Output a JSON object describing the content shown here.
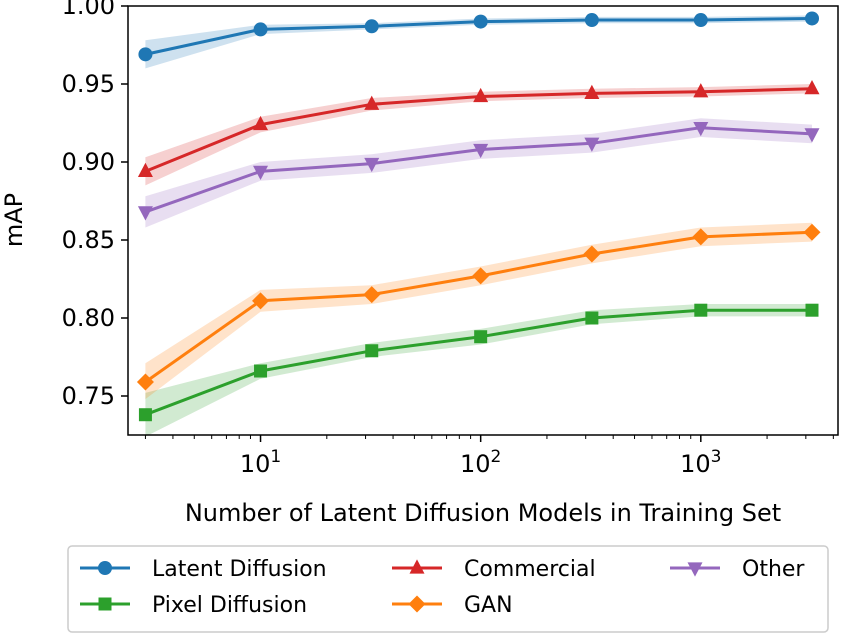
{
  "chart_data": {
    "type": "line",
    "title": "",
    "xlabel": "Number of Latent Diffusion Models in Training Set",
    "ylabel": "mAP",
    "xscale": "log",
    "xlim": [
      2.5,
      4200
    ],
    "ylim": [
      0.725,
      1.0
    ],
    "x": [
      3,
      10,
      32,
      100,
      320,
      1000,
      3200
    ],
    "y_ticks": [
      "0.75",
      "0.80",
      "0.85",
      "0.90",
      "0.95",
      "1.00"
    ],
    "x_ticks": [
      {
        "base": "10",
        "exp": "1"
      },
      {
        "base": "10",
        "exp": "2"
      },
      {
        "base": "10",
        "exp": "3"
      }
    ],
    "legend_position": "below",
    "series": [
      {
        "name": "Latent Diffusion",
        "color": "#1f77b4",
        "marker": "circle",
        "values": [
          0.969,
          0.985,
          0.987,
          0.99,
          0.991,
          0.991,
          0.992
        ],
        "lower": [
          0.96,
          0.982,
          0.985,
          0.988,
          0.989,
          0.989,
          0.99
        ],
        "upper": [
          0.978,
          0.988,
          0.989,
          0.992,
          0.993,
          0.993,
          0.994
        ]
      },
      {
        "name": "Pixel Diffusion",
        "color": "#2ca02c",
        "marker": "square",
        "values": [
          0.738,
          0.766,
          0.779,
          0.788,
          0.8,
          0.805,
          0.805
        ],
        "lower": [
          0.724,
          0.761,
          0.775,
          0.783,
          0.796,
          0.801,
          0.801
        ],
        "upper": [
          0.752,
          0.771,
          0.784,
          0.793,
          0.805,
          0.809,
          0.809
        ]
      },
      {
        "name": "Commercial",
        "color": "#d62728",
        "marker": "triangle-up",
        "values": [
          0.894,
          0.924,
          0.937,
          0.942,
          0.944,
          0.945,
          0.947
        ],
        "lower": [
          0.885,
          0.919,
          0.933,
          0.939,
          0.941,
          0.942,
          0.944
        ],
        "upper": [
          0.903,
          0.929,
          0.941,
          0.945,
          0.947,
          0.948,
          0.95
        ]
      },
      {
        "name": "GAN",
        "color": "#ff7f0e",
        "marker": "diamond",
        "values": [
          0.759,
          0.811,
          0.815,
          0.827,
          0.841,
          0.852,
          0.855
        ],
        "lower": [
          0.748,
          0.804,
          0.809,
          0.821,
          0.835,
          0.846,
          0.849
        ],
        "upper": [
          0.771,
          0.818,
          0.821,
          0.833,
          0.847,
          0.858,
          0.861
        ]
      },
      {
        "name": "Other",
        "color": "#9467bd",
        "marker": "triangle-down",
        "values": [
          0.868,
          0.894,
          0.899,
          0.908,
          0.912,
          0.922,
          0.918
        ],
        "lower": [
          0.858,
          0.888,
          0.893,
          0.902,
          0.906,
          0.916,
          0.912
        ],
        "upper": [
          0.878,
          0.9,
          0.905,
          0.914,
          0.918,
          0.928,
          0.924
        ]
      }
    ]
  }
}
